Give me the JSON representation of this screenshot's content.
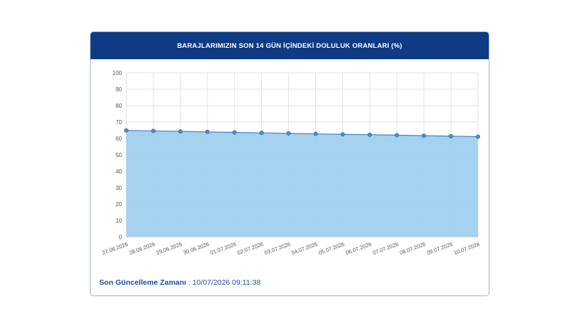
{
  "card": {
    "title": "BARAJLARIMIZIN SON 14 GÜN İÇİNDEKİ DOLULUK ORANLARI (%)"
  },
  "footer": {
    "label": "Son Güncelleme Zamanı",
    "separator": " : ",
    "value": "10/07/2026 09:11:38"
  },
  "chart_data": {
    "type": "area",
    "title": "BARAJLARIMIZIN SON 14 GÜN İÇİNDEKİ DOLULUK ORANLARI (%)",
    "xlabel": "",
    "ylabel": "",
    "categories": [
      "27.06.2026",
      "28.06.2026",
      "29.06.2026",
      "30.06.2026",
      "01.07.2026",
      "02.07.2026",
      "03.07.2026",
      "04.07.2026",
      "05.07.2026",
      "06.07.2026",
      "07.07.2026",
      "08.07.2026",
      "09.07.2026",
      "10.07.2026"
    ],
    "values": [
      64.9,
      64.6,
      64.3,
      64.0,
      63.7,
      63.4,
      63.1,
      62.8,
      62.5,
      62.3,
      62.0,
      61.7,
      61.4,
      61.1
    ],
    "ylim": [
      0,
      100
    ],
    "yticks": [
      0,
      10,
      20,
      30,
      40,
      50,
      60,
      70,
      80,
      90,
      100
    ],
    "grid": true,
    "colors": {
      "fill": "#9fd0ee",
      "line": "#3d86c6",
      "marker": "#4a90d0",
      "grid": "#e2e2e2"
    }
  }
}
